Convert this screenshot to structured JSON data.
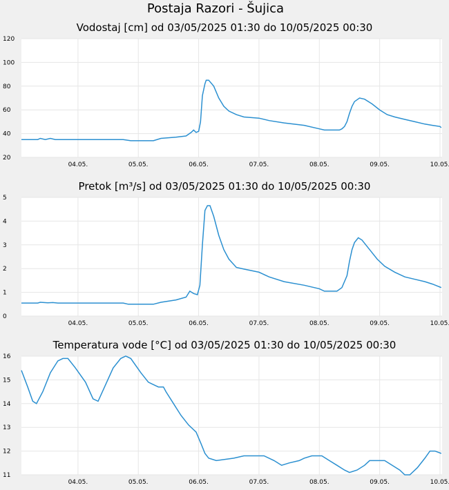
{
  "page": {
    "title": "Postaja Razori - Šujica"
  },
  "colors": {
    "background": "#f0f0f0",
    "plot": "#ffffff",
    "grid": "#e6e6e6",
    "series": "#2a8fd0"
  },
  "chart_data": [
    {
      "type": "line",
      "title": "Vodostaj [cm] od 03/05/2025 01:30 do 10/05/2025 00:30",
      "xlabel": "",
      "ylabel": "",
      "x_range": [
        "2025-05-03 01:30",
        "2025-05-10 00:30"
      ],
      "x_ticks": [
        {
          "x": "2025-05-04 00:00",
          "label": "04.05."
        },
        {
          "x": "2025-05-05 00:00",
          "label": "05.05."
        },
        {
          "x": "2025-05-06 00:00",
          "label": "06.05."
        },
        {
          "x": "2025-05-07 00:00",
          "label": "07.05."
        },
        {
          "x": "2025-05-08 00:00",
          "label": "08.05."
        },
        {
          "x": "2025-05-09 00:00",
          "label": "09.05."
        },
        {
          "x": "2025-05-10 00:00",
          "label": "10.05."
        }
      ],
      "ylim": [
        20,
        120
      ],
      "y_ticks": [
        20,
        40,
        60,
        80,
        100,
        120
      ],
      "grid": true,
      "series": [
        {
          "values": [
            [
              "2025-05-03 01:30",
              35
            ],
            [
              "2025-05-03 08:00",
              35
            ],
            [
              "2025-05-03 09:00",
              36
            ],
            [
              "2025-05-03 11:00",
              35
            ],
            [
              "2025-05-03 13:00",
              36
            ],
            [
              "2025-05-03 15:00",
              35
            ],
            [
              "2025-05-04 06:00",
              35
            ],
            [
              "2025-05-04 18:00",
              35
            ],
            [
              "2025-05-04 21:00",
              34
            ],
            [
              "2025-05-05 06:00",
              34
            ],
            [
              "2025-05-05 09:00",
              36
            ],
            [
              "2025-05-05 15:00",
              37
            ],
            [
              "2025-05-05 19:00",
              38
            ],
            [
              "2025-05-05 21:00",
              41
            ],
            [
              "2025-05-05 22:00",
              43
            ],
            [
              "2025-05-05 23:00",
              41
            ],
            [
              "2025-05-06 00:00",
              42
            ],
            [
              "2025-05-06 00:45",
              50
            ],
            [
              "2025-05-06 01:30",
              72
            ],
            [
              "2025-05-06 02:30",
              82
            ],
            [
              "2025-05-06 03:00",
              85
            ],
            [
              "2025-05-06 04:00",
              85
            ],
            [
              "2025-05-06 06:00",
              80
            ],
            [
              "2025-05-06 08:00",
              70
            ],
            [
              "2025-05-06 10:00",
              63
            ],
            [
              "2025-05-06 12:00",
              59
            ],
            [
              "2025-05-06 15:00",
              56
            ],
            [
              "2025-05-06 18:00",
              54
            ],
            [
              "2025-05-07 00:00",
              53
            ],
            [
              "2025-05-07 04:00",
              51
            ],
            [
              "2025-05-07 10:00",
              49
            ],
            [
              "2025-05-07 18:00",
              47
            ],
            [
              "2025-05-08 00:00",
              44
            ],
            [
              "2025-05-08 02:00",
              43
            ],
            [
              "2025-05-08 08:00",
              43
            ],
            [
              "2025-05-08 09:00",
              44
            ],
            [
              "2025-05-08 10:00",
              46
            ],
            [
              "2025-05-08 11:00",
              50
            ],
            [
              "2025-05-08 12:00",
              57
            ],
            [
              "2025-05-08 13:00",
              63
            ],
            [
              "2025-05-08 14:00",
              67
            ],
            [
              "2025-05-08 16:00",
              70
            ],
            [
              "2025-05-08 18:00",
              69
            ],
            [
              "2025-05-08 21:00",
              65
            ],
            [
              "2025-05-09 00:00",
              60
            ],
            [
              "2025-05-09 03:00",
              56
            ],
            [
              "2025-05-09 06:00",
              54
            ],
            [
              "2025-05-09 10:00",
              52
            ],
            [
              "2025-05-09 14:00",
              50
            ],
            [
              "2025-05-09 18:00",
              48
            ],
            [
              "2025-05-09 21:00",
              47
            ],
            [
              "2025-05-10 00:00",
              46
            ],
            [
              "2025-05-10 00:30",
              45
            ]
          ]
        }
      ]
    },
    {
      "type": "line",
      "title": "Pretok [m³/s] od 03/05/2025 01:30 do 10/05/2025 00:30",
      "xlabel": "",
      "ylabel": "",
      "x_range": [
        "2025-05-03 01:30",
        "2025-05-10 00:30"
      ],
      "x_ticks": [
        {
          "x": "2025-05-04 00:00",
          "label": "04.05."
        },
        {
          "x": "2025-05-05 00:00",
          "label": "05.05."
        },
        {
          "x": "2025-05-06 00:00",
          "label": "06.05."
        },
        {
          "x": "2025-05-07 00:00",
          "label": "07.05."
        },
        {
          "x": "2025-05-08 00:00",
          "label": "08.05."
        },
        {
          "x": "2025-05-09 00:00",
          "label": "09.05."
        },
        {
          "x": "2025-05-10 00:00",
          "label": "10.05."
        }
      ],
      "ylim": [
        0,
        5
      ],
      "y_ticks": [
        0,
        1,
        2,
        3,
        4,
        5
      ],
      "grid": true,
      "series": [
        {
          "values": [
            [
              "2025-05-03 01:30",
              0.55
            ],
            [
              "2025-05-03 08:00",
              0.55
            ],
            [
              "2025-05-03 09:00",
              0.58
            ],
            [
              "2025-05-03 12:00",
              0.56
            ],
            [
              "2025-05-03 14:00",
              0.57
            ],
            [
              "2025-05-03 16:00",
              0.55
            ],
            [
              "2025-05-04 06:00",
              0.55
            ],
            [
              "2025-05-04 18:00",
              0.55
            ],
            [
              "2025-05-04 20:00",
              0.5
            ],
            [
              "2025-05-05 06:00",
              0.5
            ],
            [
              "2025-05-05 09:00",
              0.58
            ],
            [
              "2025-05-05 15:00",
              0.68
            ],
            [
              "2025-05-05 19:00",
              0.8
            ],
            [
              "2025-05-05 20:30",
              1.05
            ],
            [
              "2025-05-05 22:00",
              0.95
            ],
            [
              "2025-05-05 23:30",
              0.9
            ],
            [
              "2025-05-06 00:30",
              1.3
            ],
            [
              "2025-05-06 01:30",
              3.0
            ],
            [
              "2025-05-06 02:30",
              4.45
            ],
            [
              "2025-05-06 03:30",
              4.65
            ],
            [
              "2025-05-06 04:30",
              4.65
            ],
            [
              "2025-05-06 06:00",
              4.2
            ],
            [
              "2025-05-06 08:00",
              3.4
            ],
            [
              "2025-05-06 10:00",
              2.8
            ],
            [
              "2025-05-06 12:00",
              2.4
            ],
            [
              "2025-05-06 15:00",
              2.05
            ],
            [
              "2025-05-06 18:00",
              1.98
            ],
            [
              "2025-05-07 00:00",
              1.85
            ],
            [
              "2025-05-07 04:00",
              1.65
            ],
            [
              "2025-05-07 10:00",
              1.45
            ],
            [
              "2025-05-07 18:00",
              1.3
            ],
            [
              "2025-05-08 00:00",
              1.15
            ],
            [
              "2025-05-08 02:00",
              1.05
            ],
            [
              "2025-05-08 07:00",
              1.05
            ],
            [
              "2025-05-08 09:00",
              1.2
            ],
            [
              "2025-05-08 11:00",
              1.7
            ],
            [
              "2025-05-08 12:00",
              2.3
            ],
            [
              "2025-05-08 13:00",
              2.8
            ],
            [
              "2025-05-08 14:00",
              3.1
            ],
            [
              "2025-05-08 15:30",
              3.3
            ],
            [
              "2025-05-08 17:00",
              3.2
            ],
            [
              "2025-05-08 20:00",
              2.8
            ],
            [
              "2025-05-08 23:00",
              2.4
            ],
            [
              "2025-05-09 02:00",
              2.1
            ],
            [
              "2025-05-09 06:00",
              1.85
            ],
            [
              "2025-05-09 10:00",
              1.65
            ],
            [
              "2025-05-09 14:00",
              1.55
            ],
            [
              "2025-05-09 18:00",
              1.45
            ],
            [
              "2025-05-09 21:00",
              1.35
            ],
            [
              "2025-05-10 00:00",
              1.22
            ],
            [
              "2025-05-10 00:30",
              1.2
            ]
          ]
        }
      ]
    },
    {
      "type": "line",
      "title": "Temperatura vode [°C] od 03/05/2025 01:30 do 10/05/2025 00:30",
      "xlabel": "",
      "ylabel": "",
      "x_range": [
        "2025-05-03 01:30",
        "2025-05-10 00:30"
      ],
      "x_ticks": [
        {
          "x": "2025-05-04 00:00",
          "label": "04.05."
        },
        {
          "x": "2025-05-05 00:00",
          "label": "05.05."
        },
        {
          "x": "2025-05-06 00:00",
          "label": "06.05."
        },
        {
          "x": "2025-05-07 00:00",
          "label": "07.05."
        },
        {
          "x": "2025-05-08 00:00",
          "label": "08.05."
        },
        {
          "x": "2025-05-09 00:00",
          "label": "09.05."
        },
        {
          "x": "2025-05-10 00:00",
          "label": "10.05."
        }
      ],
      "ylim": [
        11,
        16
      ],
      "y_ticks": [
        11,
        12,
        13,
        14,
        15,
        16
      ],
      "grid": true,
      "series": [
        {
          "values": [
            [
              "2025-05-03 01:30",
              15.4
            ],
            [
              "2025-05-03 04:00",
              14.7
            ],
            [
              "2025-05-03 06:00",
              14.1
            ],
            [
              "2025-05-03 07:30",
              14.0
            ],
            [
              "2025-05-03 10:00",
              14.5
            ],
            [
              "2025-05-03 13:00",
              15.3
            ],
            [
              "2025-05-03 16:00",
              15.8
            ],
            [
              "2025-05-03 18:00",
              15.9
            ],
            [
              "2025-05-03 20:00",
              15.9
            ],
            [
              "2025-05-03 23:00",
              15.5
            ],
            [
              "2025-05-04 03:00",
              14.9
            ],
            [
              "2025-05-04 06:00",
              14.2
            ],
            [
              "2025-05-04 08:00",
              14.1
            ],
            [
              "2025-05-04 11:00",
              14.8
            ],
            [
              "2025-05-04 14:00",
              15.5
            ],
            [
              "2025-05-04 17:00",
              15.9
            ],
            [
              "2025-05-04 19:00",
              16.0
            ],
            [
              "2025-05-04 21:00",
              15.9
            ],
            [
              "2025-05-05 01:00",
              15.3
            ],
            [
              "2025-05-05 04:00",
              14.9
            ],
            [
              "2025-05-05 06:00",
              14.8
            ],
            [
              "2025-05-05 08:00",
              14.7
            ],
            [
              "2025-05-05 10:00",
              14.7
            ],
            [
              "2025-05-05 11:00",
              14.5
            ],
            [
              "2025-05-05 14:00",
              14.0
            ],
            [
              "2025-05-05 17:00",
              13.5
            ],
            [
              "2025-05-05 20:00",
              13.1
            ],
            [
              "2025-05-05 23:00",
              12.8
            ],
            [
              "2025-05-06 01:00",
              12.3
            ],
            [
              "2025-05-06 02:30",
              11.9
            ],
            [
              "2025-05-06 04:00",
              11.7
            ],
            [
              "2025-05-06 07:00",
              11.6
            ],
            [
              "2025-05-06 14:00",
              11.7
            ],
            [
              "2025-05-06 18:00",
              11.8
            ],
            [
              "2025-05-07 02:00",
              11.8
            ],
            [
              "2025-05-07 06:00",
              11.6
            ],
            [
              "2025-05-07 09:00",
              11.4
            ],
            [
              "2025-05-07 12:00",
              11.5
            ],
            [
              "2025-05-07 16:00",
              11.6
            ],
            [
              "2025-05-07 18:00",
              11.7
            ],
            [
              "2025-05-07 21:00",
              11.8
            ],
            [
              "2025-05-08 01:00",
              11.8
            ],
            [
              "2025-05-08 04:00",
              11.6
            ],
            [
              "2025-05-08 07:00",
              11.4
            ],
            [
              "2025-05-08 10:00",
              11.2
            ],
            [
              "2025-05-08 12:00",
              11.1
            ],
            [
              "2025-05-08 15:00",
              11.2
            ],
            [
              "2025-05-08 18:00",
              11.4
            ],
            [
              "2025-05-08 20:00",
              11.6
            ],
            [
              "2025-05-09 02:00",
              11.6
            ],
            [
              "2025-05-09 05:00",
              11.4
            ],
            [
              "2025-05-09 08:00",
              11.2
            ],
            [
              "2025-05-09 10:00",
              11.0
            ],
            [
              "2025-05-09 12:00",
              11.0
            ],
            [
              "2025-05-09 15:00",
              11.3
            ],
            [
              "2025-05-09 18:00",
              11.7
            ],
            [
              "2025-05-09 20:00",
              12.0
            ],
            [
              "2025-05-09 22:00",
              12.0
            ],
            [
              "2025-05-10 00:30",
              11.9
            ]
          ]
        }
      ]
    }
  ]
}
